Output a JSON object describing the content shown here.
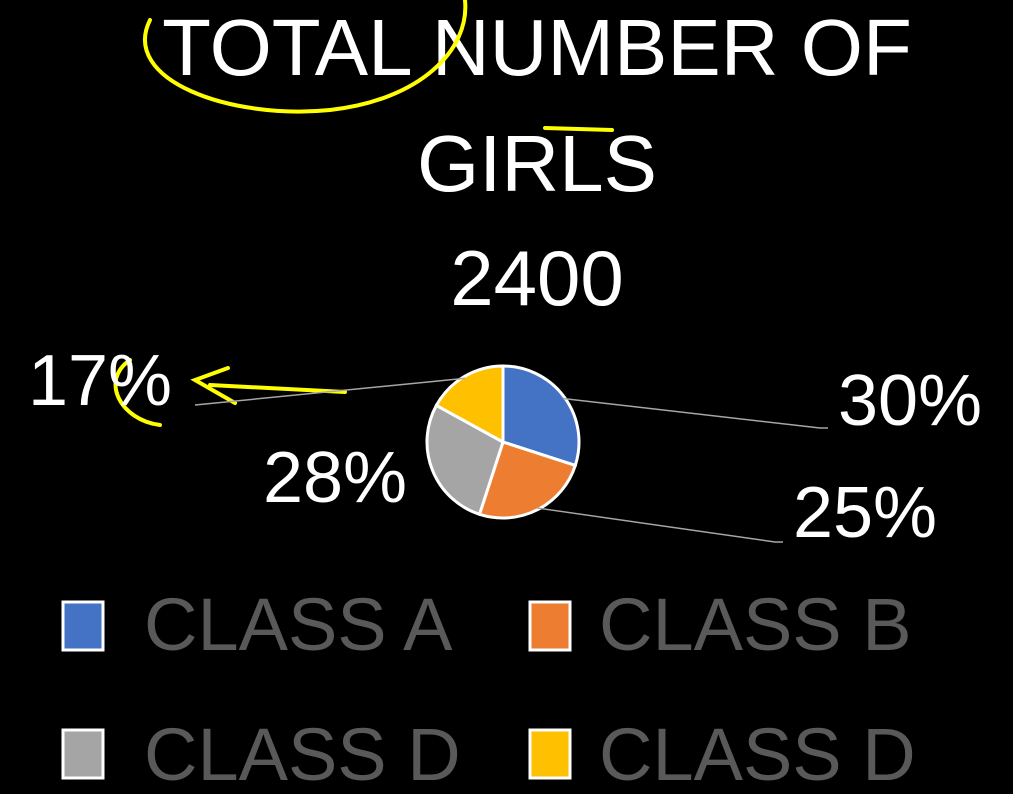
{
  "chart_data": {
    "type": "pie",
    "title": "TOTAL NUMBER OF GIRLS",
    "subtitle": "2400",
    "categories": [
      "CLASS A",
      "CLASS B",
      "CLASS D",
      "CLASS D"
    ],
    "values": [
      30,
      25,
      28,
      17
    ],
    "value_labels": [
      "30%",
      "25%",
      "28%",
      "17%"
    ],
    "colors": [
      "#4472c4",
      "#ed7d31",
      "#a5a5a5",
      "#ffc000"
    ],
    "legend": "bottom"
  }
}
